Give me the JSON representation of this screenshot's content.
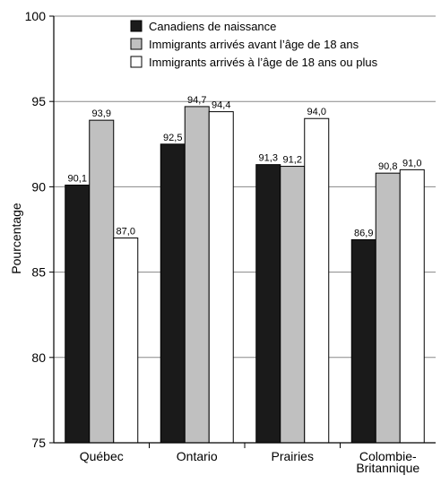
{
  "chart_data": {
    "type": "bar",
    "ylabel": "Pourcentage",
    "ylim": [
      75,
      100
    ],
    "yticks": [
      75,
      80,
      85,
      90,
      95,
      100
    ],
    "grid": true,
    "legend_position": "top-right",
    "categories": [
      [
        "Québec"
      ],
      [
        "Ontario"
      ],
      [
        "Prairies"
      ],
      [
        "Colombie-",
        "Britannique"
      ]
    ],
    "series": [
      {
        "name": "Canadiens de naissance",
        "color": "#1a1a1a",
        "values": [
          90.1,
          92.5,
          91.3,
          86.9
        ],
        "labels": [
          "90,1",
          "92,5",
          "91,3",
          "86,9"
        ]
      },
      {
        "name": "Immigrants arrivés avant l’âge de 18 ans",
        "color": "#c0c0c0",
        "values": [
          93.9,
          94.7,
          91.2,
          90.8
        ],
        "labels": [
          "93,9",
          "94,7",
          "91,2",
          "90,8"
        ]
      },
      {
        "name": "Immigrants arrivés à l’âge de 18 ans ou plus",
        "color": "#ffffff",
        "values": [
          87.0,
          94.4,
          94.0,
          91.0
        ],
        "labels": [
          "87,0",
          "94,4",
          "94,0",
          "91,0"
        ]
      }
    ]
  }
}
